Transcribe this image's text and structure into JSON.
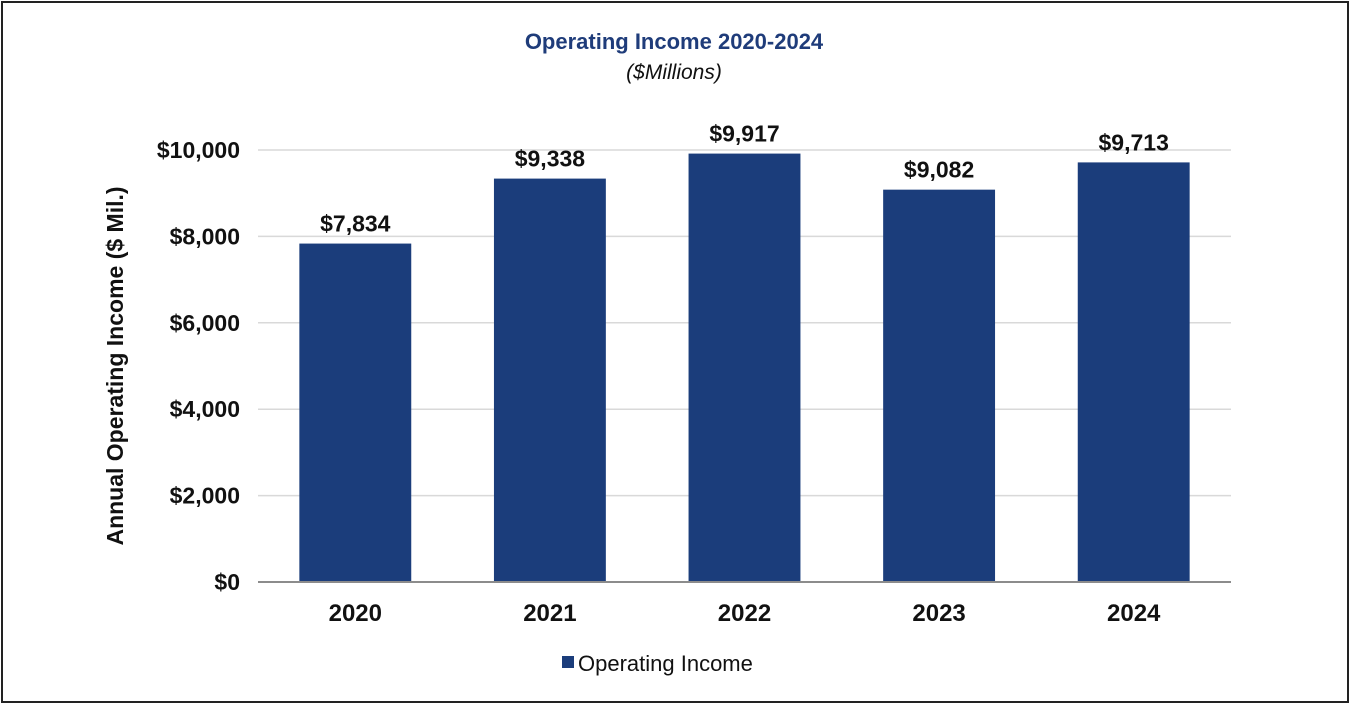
{
  "chart_data": {
    "type": "bar",
    "title": "Operating Income 2020-2024",
    "subtitle": "($Millions)",
    "xlabel": "",
    "ylabel": "Annual Operating Income ($ Mil.)",
    "categories": [
      "2020",
      "2021",
      "2022",
      "2023",
      "2024"
    ],
    "series": [
      {
        "name": "Operating Income",
        "values": [
          7834,
          9338,
          9917,
          9082,
          9713
        ],
        "labels": [
          "$7,834",
          "$9,338",
          "$9,917",
          "$9,082",
          "$9,713"
        ]
      }
    ],
    "ylim": [
      0,
      10000
    ],
    "yticks": [
      0,
      2000,
      4000,
      6000,
      8000,
      10000
    ],
    "ytick_labels": [
      "$0",
      "$2,000",
      "$4,000",
      "$6,000",
      "$8,000",
      "$10,000"
    ],
    "grid": true,
    "legend": "bottom-center"
  },
  "colors": {
    "bar": "#1b3d7b",
    "title": "#1f3c7a",
    "grid": "#d9d9d9",
    "axis": "#8c8c8c",
    "text": "#111111"
  }
}
